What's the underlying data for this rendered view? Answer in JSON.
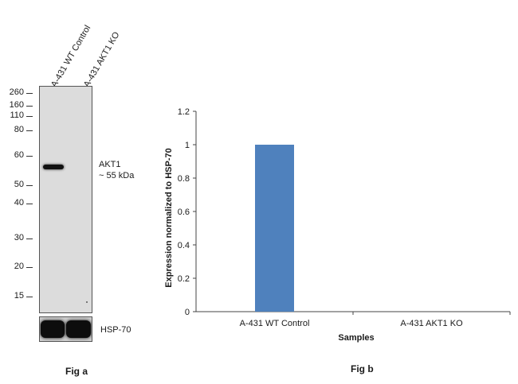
{
  "fig_a": {
    "lanes": [
      "A-431 WT Control",
      "A-431 AKT1 KO"
    ],
    "mw_markers": [
      "260",
      "160",
      "110",
      "80",
      "60",
      "50",
      "40",
      "30",
      "20",
      "15"
    ],
    "band_label_line1": "AKT1",
    "band_label_line2": "~ 55 kDa",
    "loading_control": "HSP-70",
    "caption": "Fig a"
  },
  "fig_b": {
    "caption": "Fig b"
  },
  "chart_data": {
    "type": "bar",
    "categories": [
      "A-431 WT Control",
      "A-431 AKT1 KO"
    ],
    "values": [
      1,
      0
    ],
    "xlabel": "Samples",
    "ylabel": "Expression normalized to HSP-70",
    "ylim": [
      0,
      1.2
    ],
    "yticks": [
      "0",
      "0.2",
      "0.4",
      "0.6",
      "0.8",
      "1",
      "1.2"
    ],
    "bar_color": "#4f81bd",
    "grid": false,
    "legend": "none"
  }
}
